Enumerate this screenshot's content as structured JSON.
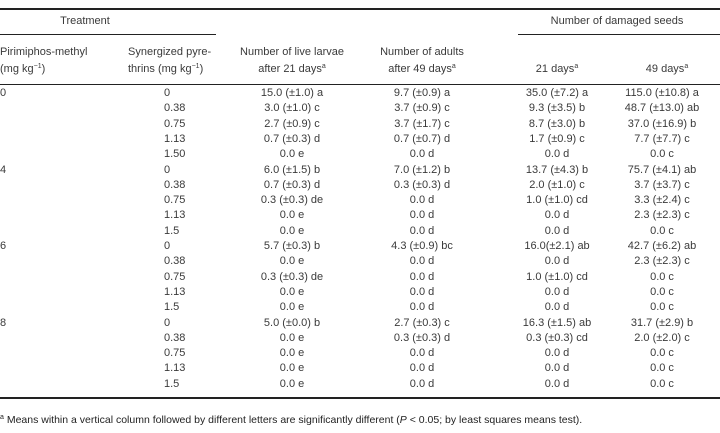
{
  "headers": {
    "treatment": "Treatment",
    "damaged_seeds": "Number of damaged seeds",
    "pirimiphos_line1": "Pirimiphos-methyl",
    "pirimiphos_line2": "(mg kg",
    "synergized_line1": "Synergized pyre-",
    "synergized_line2": "thrins (mg kg",
    "exp": "−1",
    "close_paren": ")",
    "larvae_line1": "Number of live larvae",
    "larvae_line2": "after 21 days",
    "adults_line1": "Number of adults",
    "adults_line2": "after 49 days",
    "days21": "21 days",
    "days49": "49 days",
    "footnote_mark": "a"
  },
  "rows": [
    [
      "0",
      "0",
      "15.0 (±1.0) a",
      "9.7 (±0.9) a",
      "35.0 (±7.2) a",
      "115.0 (±10.8) a"
    ],
    [
      "",
      "0.38",
      "3.0 (±1.0) c",
      "3.7 (±0.9) c",
      "9.3 (±3.5) b",
      "48.7 (±13.0) ab"
    ],
    [
      "",
      "0.75",
      "2.7 (±0.9) c",
      "3.7 (±1.7) c",
      "8.7 (±3.0) b",
      "37.0 (±16.9) b"
    ],
    [
      "",
      "1.13",
      "0.7 (±0.3) d",
      "0.7 (±0.7) d",
      "1.7 (±0.9) c",
      "7.7 (±7.7) c"
    ],
    [
      "",
      "1.50",
      "0.0 e",
      "0.0 d",
      "0.0 d",
      "0.0 c"
    ],
    [
      "4",
      "0",
      "6.0 (±1.5) b",
      "7.0 (±1.2) b",
      "13.7 (±4.3) b",
      "75.7 (±4.1) ab"
    ],
    [
      "",
      "0.38",
      "0.7 (±0.3) d",
      "0.3 (±0.3) d",
      "2.0 (±1.0) c",
      "3.7 (±3.7) c"
    ],
    [
      "",
      "0.75",
      "0.3 (±0.3) de",
      "0.0 d",
      "1.0 (±1.0) cd",
      "3.3 (±2.4) c"
    ],
    [
      "",
      "1.13",
      "0.0 e",
      "0.0 d",
      "0.0 d",
      "2.3 (±2.3) c"
    ],
    [
      "",
      "1.5",
      "0.0 e",
      "0.0 d",
      "0.0 d",
      "0.0 c"
    ],
    [
      "6",
      "0",
      "5.7 (±0.3) b",
      "4.3 (±0.9) bc",
      "16.0(±2.1) ab",
      "42.7 (±6.2) ab"
    ],
    [
      "",
      "0.38",
      "0.0 e",
      "0.0 d",
      "0.0 d",
      "2.3 (±2.3) c"
    ],
    [
      "",
      "0.75",
      "0.3 (±0.3) de",
      "0.0 d",
      "1.0 (±1.0) cd",
      "0.0 c"
    ],
    [
      "",
      "1.13",
      "0.0 e",
      "0.0 d",
      "0.0 d",
      "0.0 c"
    ],
    [
      "",
      "1.5",
      "0.0 e",
      "0.0 d",
      "0.0 d",
      "0.0 c"
    ],
    [
      "8",
      "0",
      "5.0 (±0.0) b",
      "2.7 (±0.3) c",
      "16.3 (±1.5) ab",
      "31.7 (±2.9) b"
    ],
    [
      "",
      "0.38",
      "0.0 e",
      "0.3 (±0.3) d",
      "0.3 (±0.3) cd",
      "2.0 (±2.0) c"
    ],
    [
      "",
      "0.75",
      "0.0 e",
      "0.0 d",
      "0.0 d",
      "0.0 c"
    ],
    [
      "",
      "1.13",
      "0.0 e",
      "0.0 d",
      "0.0 d",
      "0.0 c"
    ],
    [
      "",
      "1.5",
      "0.0 e",
      "0.0 d",
      "0.0 d",
      "0.0 c"
    ]
  ],
  "footnote": {
    "mark": "a",
    "text_before": " Means within a vertical column followed by different letters are significantly different (",
    "p": "P",
    "text_after": " < 0.05; by least squares means test)."
  }
}
